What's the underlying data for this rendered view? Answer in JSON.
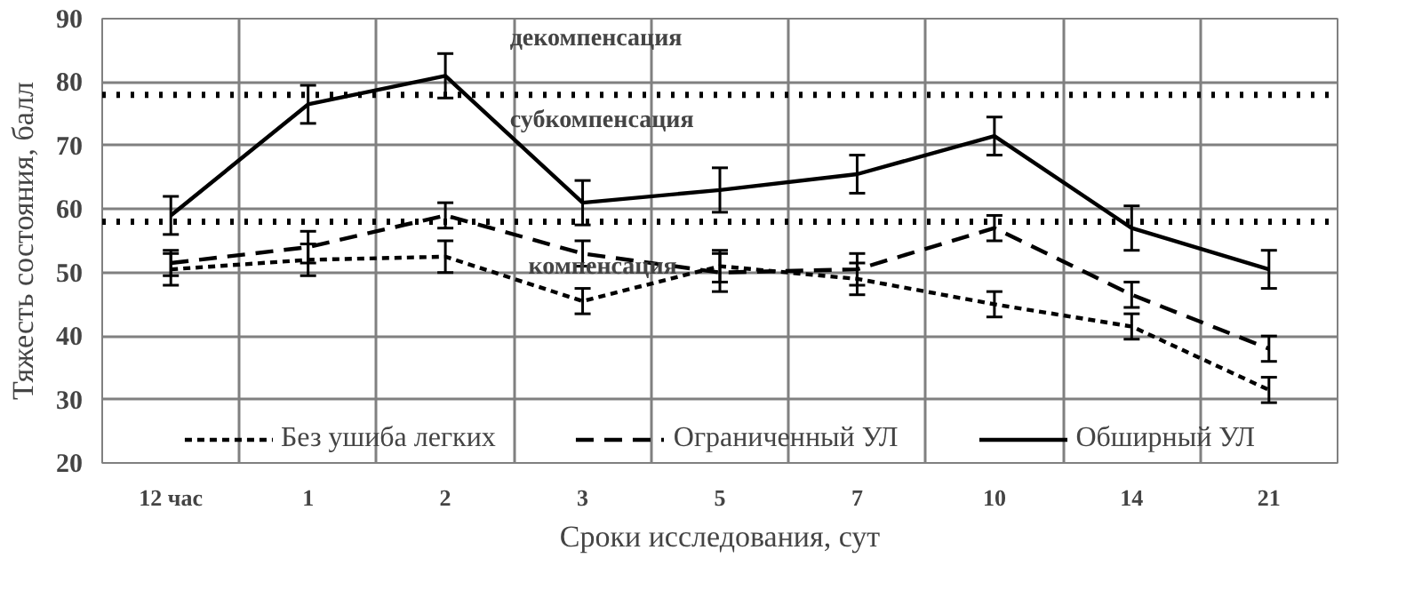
{
  "chart_data": {
    "type": "line",
    "xlabel": "Сроки исследования, сут",
    "ylabel": "Тяжесть состояния, балл",
    "categories": [
      "12 час",
      "1",
      "2",
      "3",
      "5",
      "7",
      "10",
      "14",
      "21"
    ],
    "ylim": [
      20,
      90
    ],
    "yticks": [
      20,
      30,
      40,
      50,
      60,
      70,
      80,
      90
    ],
    "grid": true,
    "legend": "bottom",
    "marker": "none",
    "series": [
      {
        "name": "Без ушиба легких",
        "color": "#000000",
        "line_style": "dotted",
        "values": [
          50.5,
          52,
          52.5,
          45.5,
          51,
          49,
          45,
          41.5,
          31.5
        ],
        "errors": [
          2.5,
          2.5,
          2.5,
          2,
          2.5,
          2.5,
          2,
          2,
          2
        ]
      },
      {
        "name": "Ограниченный УЛ",
        "color": "#000000",
        "line_style": "dashed",
        "values": [
          51.5,
          54,
          59,
          53,
          50,
          50.5,
          57,
          46.5,
          38
        ],
        "errors": [
          2,
          2.5,
          2,
          2,
          3,
          2.5,
          2,
          2,
          2
        ]
      },
      {
        "name": "Обширный УЛ",
        "color": "#000000",
        "line_style": "solid",
        "values": [
          59,
          76.5,
          81,
          61,
          63,
          65.5,
          71.5,
          57,
          50.5
        ],
        "errors": [
          3,
          3,
          3.5,
          3.5,
          3.5,
          3,
          3,
          3.5,
          3
        ]
      }
    ],
    "ref_lines": [
      {
        "axis": "y",
        "value": 78,
        "color": "#000000",
        "line_style": "dotted"
      },
      {
        "axis": "y",
        "value": 58,
        "color": "#000000",
        "line_style": "dotted"
      }
    ],
    "annotations": [
      "декомпенсация",
      "субкомпенсация",
      "компенсация"
    ]
  }
}
